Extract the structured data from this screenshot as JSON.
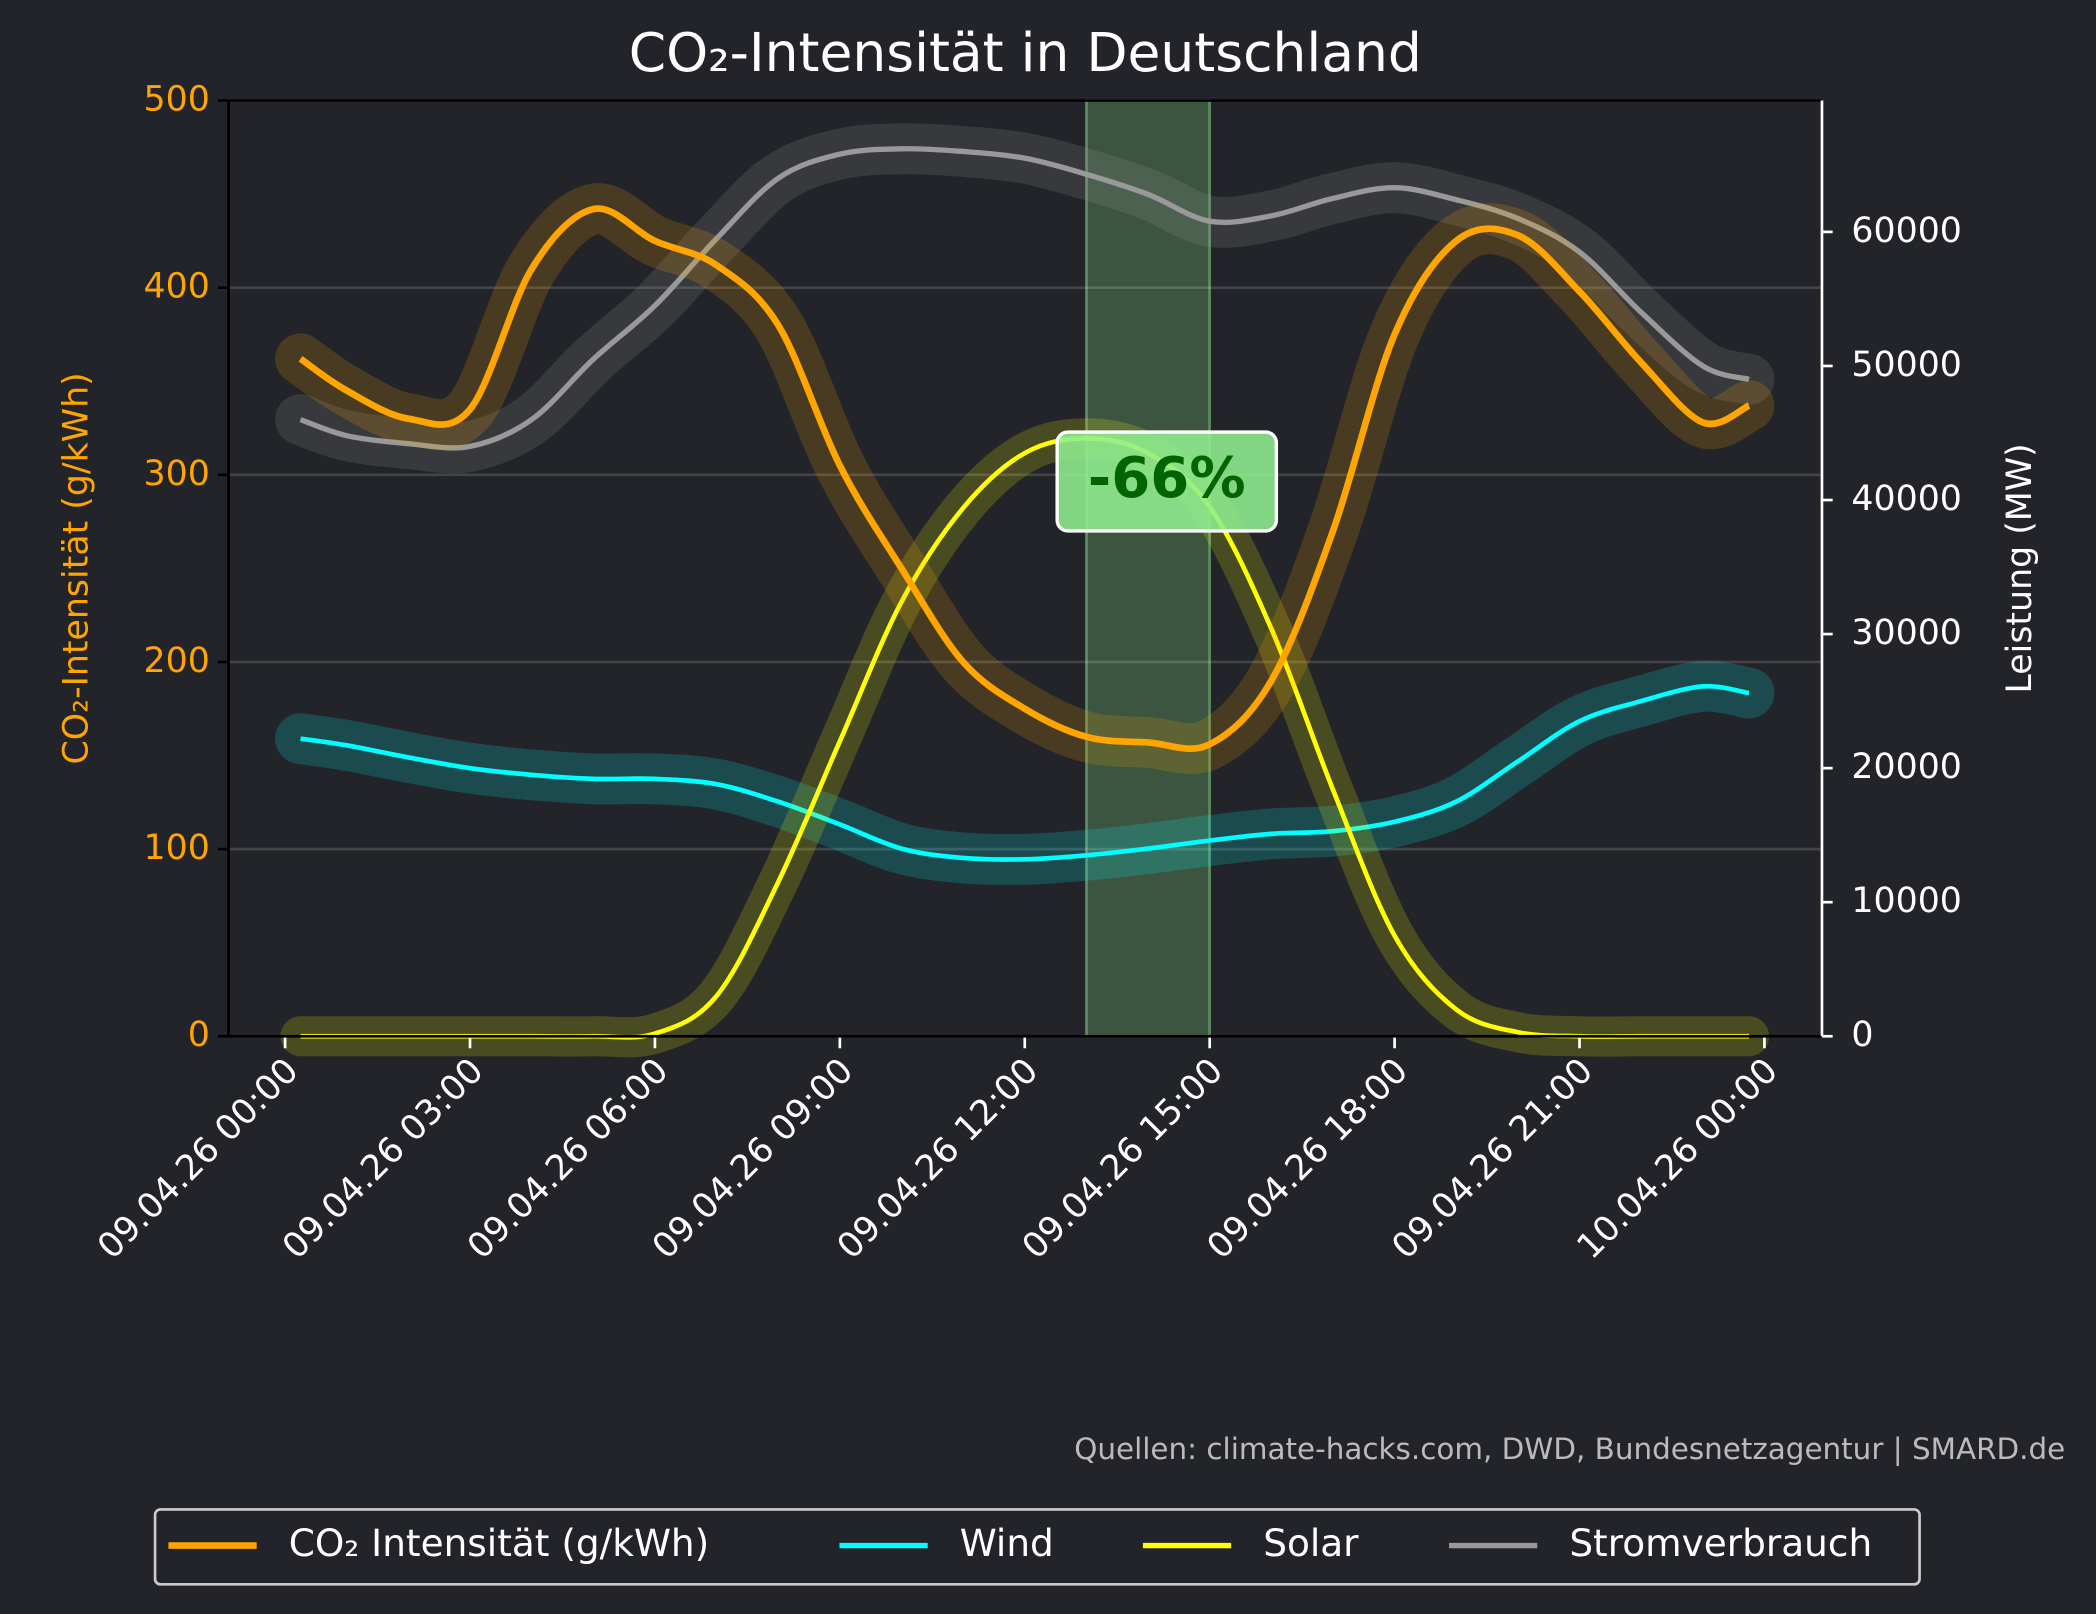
{
  "chart_data": {
    "type": "line",
    "title": "CO₂-Intensität in Deutschland",
    "ylabel": "CO₂-Intensität (g/kWh)",
    "y2label": "Leistung (MW)",
    "source": "Quellen: climate-hacks.com, DWD, Bundesnetzagentur | SMARD.de",
    "annotation": "-66%",
    "highlight": [
      "09.04.26 13:00",
      "09.04.26 15:00"
    ],
    "x": [
      "09.04.26 00:15",
      "09.04.26 01:00",
      "09.04.26 02:00",
      "09.04.26 03:00",
      "09.04.26 04:00",
      "09.04.26 05:00",
      "09.04.26 06:00",
      "09.04.26 07:00",
      "09.04.26 08:00",
      "09.04.26 09:00",
      "09.04.26 10:00",
      "09.04.26 11:00",
      "09.04.26 12:00",
      "09.04.26 13:00",
      "09.04.26 14:00",
      "09.04.26 15:00",
      "09.04.26 16:00",
      "09.04.26 17:00",
      "09.04.26 18:00",
      "09.04.26 19:00",
      "09.04.26 20:00",
      "09.04.26 21:00",
      "09.04.26 22:00",
      "09.04.26 23:00",
      "09.04.26 23:45"
    ],
    "xlim": [
      "08.04.26 23:05",
      "10.04.26 00:56"
    ],
    "xticks": [
      "09.04.26 00:00",
      "09.04.26 03:00",
      "09.04.26 06:00",
      "09.04.26 09:00",
      "09.04.26 12:00",
      "09.04.26 15:00",
      "09.04.26 18:00",
      "09.04.26 21:00",
      "10.04.26 00:00"
    ],
    "ylim": [
      0,
      500
    ],
    "yticks": [
      0,
      100,
      200,
      300,
      400,
      500
    ],
    "y2lim": [
      0,
      69800
    ],
    "y2ticks": [
      0,
      10000,
      20000,
      30000,
      40000,
      50000,
      60000
    ],
    "grid": true,
    "legend": "bottom",
    "series": [
      {
        "name": "CO₂ Intensität (g/kWh)",
        "color": "#ffa500",
        "axis": "y",
        "values": [
          362,
          345,
          330,
          335,
          410,
          442,
          425,
          412,
          380,
          305,
          250,
          200,
          175,
          160,
          157,
          156,
          190,
          270,
          375,
          425,
          428,
          398,
          360,
          328,
          337
        ]
      },
      {
        "name": "Wind",
        "color": "#00ffff",
        "axis": "y2",
        "values": [
          22200,
          21700,
          20800,
          20000,
          19500,
          19200,
          19200,
          18800,
          17500,
          15800,
          14000,
          13300,
          13200,
          13500,
          14000,
          14600,
          15100,
          15300,
          16000,
          17500,
          20500,
          23500,
          25000,
          26100,
          25600
        ]
      },
      {
        "name": "Solar",
        "color": "#ffff00",
        "axis": "y2",
        "values": [
          0,
          0,
          0,
          0,
          0,
          0,
          200,
          3000,
          11500,
          22000,
          32400,
          39400,
          43500,
          44600,
          43500,
          39500,
          30400,
          18400,
          7500,
          2000,
          300,
          0,
          0,
          0,
          0
        ]
      },
      {
        "name": "Stromverbrauch",
        "color": "#999999",
        "axis": "y2",
        "values": [
          46000,
          44800,
          44200,
          44000,
          46000,
          50500,
          54500,
          59500,
          64000,
          65800,
          66200,
          66000,
          65500,
          64300,
          62800,
          60800,
          61200,
          62500,
          63300,
          62400,
          61000,
          58500,
          54000,
          50000,
          49000
        ]
      }
    ]
  }
}
